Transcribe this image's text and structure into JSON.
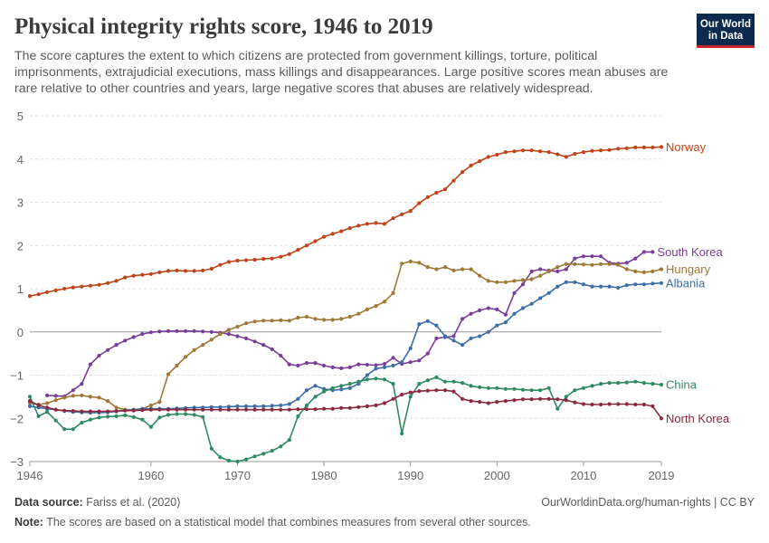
{
  "header": {
    "title": "Physical integrity rights score, 1946 to 2019",
    "subtitle": "The score captures the extent to which citizens are protected from government killings, torture, political imprisonments, extrajudicial executions, mass killings and disappearances. Large positive scores mean abuses are rare relative to other countries and years, large negative scores that abuses are relatively widespread.",
    "logo_line1": "Our World",
    "logo_line2": "in Data"
  },
  "footer": {
    "source_label": "Data source:",
    "source_text": "Fariss et al. (2020)",
    "url_text": "OurWorldinData.org/human-rights | CC BY",
    "note_label": "Note:",
    "note_text": "The scores are based on a statistical model that combines measures from several other sources."
  },
  "chart_data": {
    "type": "line",
    "title": "Physical integrity rights score, 1946 to 2019",
    "xlabel": "",
    "ylabel": "",
    "xlim": [
      1946,
      2019
    ],
    "ylim": [
      -3,
      5
    ],
    "x_ticks": [
      1946,
      1960,
      1970,
      1980,
      1990,
      2000,
      2010,
      2019
    ],
    "y_ticks": [
      -3,
      -2,
      -1,
      0,
      1,
      2,
      3,
      4,
      5
    ],
    "grid": "horizontal dashed",
    "legend": "right, labels at line ends",
    "series": [
      {
        "name": "Norway",
        "color": "#c0441a",
        "start": 1946,
        "values": [
          0.83,
          0.87,
          0.92,
          0.96,
          1.0,
          1.03,
          1.05,
          1.07,
          1.09,
          1.13,
          1.18,
          1.26,
          1.3,
          1.32,
          1.34,
          1.38,
          1.41,
          1.42,
          1.41,
          1.41,
          1.42,
          1.46,
          1.55,
          1.62,
          1.65,
          1.66,
          1.67,
          1.69,
          1.7,
          1.74,
          1.8,
          1.9,
          2.0,
          2.1,
          2.2,
          2.27,
          2.33,
          2.4,
          2.46,
          2.5,
          2.52,
          2.5,
          2.63,
          2.72,
          2.8,
          2.98,
          3.12,
          3.22,
          3.3,
          3.5,
          3.7,
          3.85,
          3.95,
          4.05,
          4.1,
          4.16,
          4.18,
          4.2,
          4.2,
          4.18,
          4.16,
          4.11,
          4.05,
          4.12,
          4.16,
          4.19,
          4.2,
          4.21,
          4.24,
          4.25,
          4.27,
          4.27,
          4.27,
          4.28
        ]
      },
      {
        "name": "South Korea",
        "color": "#7a3d99",
        "start": 1948,
        "values": [
          -1.47,
          -1.48,
          -1.49,
          -1.35,
          -1.2,
          -0.75,
          -0.55,
          -0.42,
          -0.3,
          -0.2,
          -0.12,
          -0.05,
          -0.01,
          0.01,
          0.02,
          0.02,
          0.02,
          0.02,
          0.01,
          0.0,
          -0.02,
          -0.05,
          -0.1,
          -0.15,
          -0.22,
          -0.3,
          -0.4,
          -0.55,
          -0.75,
          -0.78,
          -0.72,
          -0.72,
          -0.78,
          -0.82,
          -0.84,
          -0.82,
          -0.75,
          -0.76,
          -0.77,
          -0.74,
          -0.6,
          -0.74,
          -0.7,
          -0.66,
          -0.5,
          -0.15,
          -0.12,
          -0.1,
          0.3,
          0.42,
          0.5,
          0.55,
          0.52,
          0.4,
          0.9,
          1.1,
          1.4,
          1.45,
          1.42,
          1.4,
          1.45,
          1.7,
          1.75,
          1.75,
          1.75,
          1.6,
          1.58,
          1.6,
          1.7,
          1.85,
          1.85
        ]
      },
      {
        "name": "Hungary",
        "color": "#a07836",
        "start": 1946,
        "values": [
          -1.65,
          -1.68,
          -1.65,
          -1.58,
          -1.52,
          -1.48,
          -1.47,
          -1.5,
          -1.52,
          -1.6,
          -1.75,
          -1.8,
          -1.8,
          -1.78,
          -1.7,
          -1.62,
          -0.98,
          -0.78,
          -0.58,
          -0.42,
          -0.3,
          -0.18,
          -0.05,
          0.05,
          0.12,
          0.2,
          0.24,
          0.26,
          0.26,
          0.27,
          0.26,
          0.33,
          0.35,
          0.3,
          0.28,
          0.28,
          0.3,
          0.35,
          0.42,
          0.52,
          0.6,
          0.7,
          0.9,
          1.58,
          1.63,
          1.6,
          1.5,
          1.45,
          1.5,
          1.42,
          1.45,
          1.45,
          1.3,
          1.18,
          1.15,
          1.15,
          1.18,
          1.2,
          1.22,
          1.3,
          1.4,
          1.5,
          1.57,
          1.57,
          1.56,
          1.55,
          1.57,
          1.57,
          1.55,
          1.45,
          1.4,
          1.38,
          1.4,
          1.45
        ]
      },
      {
        "name": "Albania",
        "color": "#3c6ea8",
        "start": 1946,
        "values": [
          -1.72,
          -1.75,
          -1.78,
          -1.8,
          -1.83,
          -1.85,
          -1.86,
          -1.87,
          -1.87,
          -1.86,
          -1.84,
          -1.82,
          -1.8,
          -1.78,
          -1.78,
          -1.78,
          -1.78,
          -1.77,
          -1.76,
          -1.75,
          -1.75,
          -1.74,
          -1.74,
          -1.73,
          -1.72,
          -1.72,
          -1.72,
          -1.72,
          -1.71,
          -1.7,
          -1.67,
          -1.55,
          -1.35,
          -1.25,
          -1.32,
          -1.35,
          -1.33,
          -1.3,
          -1.2,
          -1.0,
          -0.85,
          -0.82,
          -0.78,
          -0.7,
          -0.38,
          0.18,
          0.25,
          0.15,
          -0.1,
          -0.2,
          -0.3,
          -0.15,
          -0.1,
          0.0,
          0.15,
          0.22,
          0.42,
          0.55,
          0.65,
          0.78,
          0.9,
          1.05,
          1.15,
          1.15,
          1.1,
          1.05,
          1.05,
          1.05,
          1.02,
          1.08,
          1.1,
          1.1,
          1.12,
          1.13
        ]
      },
      {
        "name": "China",
        "color": "#2f8a63",
        "start": 1946,
        "values": [
          -1.5,
          -1.95,
          -1.85,
          -2.05,
          -2.25,
          -2.25,
          -2.1,
          -2.03,
          -1.98,
          -1.96,
          -1.95,
          -1.93,
          -1.97,
          -2.03,
          -2.2,
          -1.98,
          -1.92,
          -1.9,
          -1.9,
          -1.92,
          -1.97,
          -2.7,
          -2.9,
          -2.98,
          -3.0,
          -2.95,
          -2.88,
          -2.82,
          -2.75,
          -2.65,
          -2.5,
          -1.95,
          -1.7,
          -1.5,
          -1.38,
          -1.3,
          -1.25,
          -1.2,
          -1.15,
          -1.1,
          -1.08,
          -1.1,
          -1.2,
          -2.35,
          -1.5,
          -1.2,
          -1.12,
          -1.05,
          -1.15,
          -1.15,
          -1.18,
          -1.25,
          -1.28,
          -1.3,
          -1.3,
          -1.32,
          -1.32,
          -1.34,
          -1.35,
          -1.35,
          -1.3,
          -1.78,
          -1.5,
          -1.35,
          -1.3,
          -1.25,
          -1.2,
          -1.18,
          -1.18,
          -1.17,
          -1.15,
          -1.18,
          -1.2,
          -1.22
        ]
      },
      {
        "name": "North Korea",
        "color": "#8a2a3e",
        "start": 1946,
        "values": [
          -1.6,
          -1.7,
          -1.75,
          -1.8,
          -1.82,
          -1.83,
          -1.84,
          -1.84,
          -1.84,
          -1.84,
          -1.83,
          -1.82,
          -1.82,
          -1.81,
          -1.8,
          -1.8,
          -1.8,
          -1.8,
          -1.8,
          -1.8,
          -1.8,
          -1.8,
          -1.8,
          -1.8,
          -1.8,
          -1.8,
          -1.8,
          -1.8,
          -1.8,
          -1.8,
          -1.8,
          -1.79,
          -1.79,
          -1.79,
          -1.78,
          -1.78,
          -1.76,
          -1.76,
          -1.74,
          -1.72,
          -1.7,
          -1.65,
          -1.55,
          -1.45,
          -1.4,
          -1.37,
          -1.36,
          -1.35,
          -1.35,
          -1.38,
          -1.55,
          -1.6,
          -1.62,
          -1.65,
          -1.62,
          -1.6,
          -1.58,
          -1.56,
          -1.56,
          -1.55,
          -1.55,
          -1.56,
          -1.58,
          -1.63,
          -1.67,
          -1.68,
          -1.68,
          -1.67,
          -1.67,
          -1.67,
          -1.68,
          -1.68,
          -1.72,
          -2.0
        ]
      }
    ]
  }
}
